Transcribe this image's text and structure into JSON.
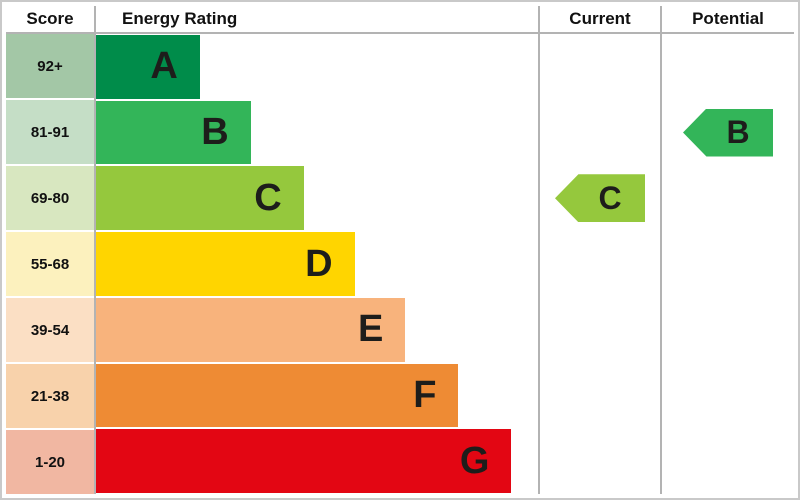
{
  "header": {
    "score_label": "Score",
    "rating_label": "Energy Rating",
    "current_label": "Current",
    "potential_label": "Potential"
  },
  "chart_data": {
    "type": "bar",
    "title": "Energy Rating",
    "columns": [
      "Score",
      "Energy Rating",
      "Current",
      "Potential"
    ],
    "bands": [
      {
        "letter": "A",
        "score": "92+",
        "bar_color": "#008c4a",
        "score_color": "#a3c7a6",
        "width_pct": 23.5
      },
      {
        "letter": "B",
        "score": "81-91",
        "bar_color": "#33b559",
        "score_color": "#c5dec6",
        "width_pct": 35
      },
      {
        "letter": "C",
        "score": "69-80",
        "bar_color": "#95c83d",
        "score_color": "#d8e7c0",
        "width_pct": 47
      },
      {
        "letter": "D",
        "score": "55-68",
        "bar_color": "#ffd500",
        "score_color": "#fcf1be",
        "width_pct": 58.5
      },
      {
        "letter": "E",
        "score": "39-54",
        "bar_color": "#f8b37c",
        "score_color": "#fbdfc4",
        "width_pct": 70
      },
      {
        "letter": "F",
        "score": "21-38",
        "bar_color": "#ee8b34",
        "score_color": "#f8d2ab",
        "width_pct": 82
      },
      {
        "letter": "G",
        "score": "1-20",
        "bar_color": "#e30613",
        "score_color": "#f1b7a2",
        "width_pct": 94
      }
    ],
    "current": {
      "letter": "C",
      "band_index": 2,
      "color": "#95c83d"
    },
    "potential": {
      "letter": "B",
      "band_index": 1,
      "color": "#33b559"
    }
  }
}
